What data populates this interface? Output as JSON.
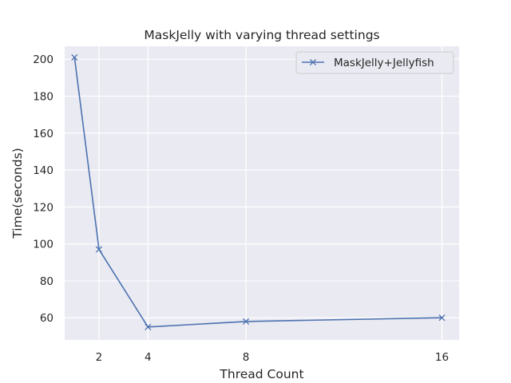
{
  "chart_data": {
    "type": "line",
    "title": "MaskJelly with varying thread settings",
    "xlabel": "Thread Count",
    "ylabel": "Time(seconds)",
    "x_ticks": [
      2,
      4,
      8,
      16
    ],
    "y_ticks": [
      60,
      80,
      100,
      120,
      140,
      160,
      180,
      200
    ],
    "xlim": [
      0.6,
      16.7
    ],
    "ylim": [
      48,
      207
    ],
    "grid": true,
    "legend_position": "top-right",
    "series": [
      {
        "name": "MaskJelly+Jellyfish",
        "color": "#4c72b0",
        "marker": "x",
        "x": [
          1,
          2,
          4,
          8,
          16
        ],
        "y": [
          201,
          97,
          55,
          58,
          60
        ]
      }
    ]
  }
}
